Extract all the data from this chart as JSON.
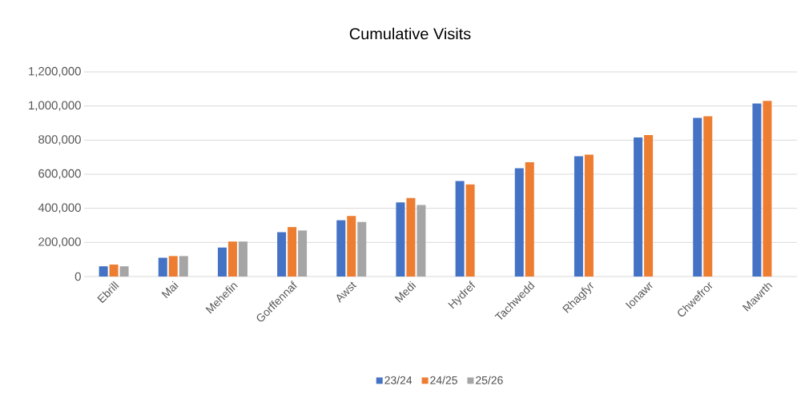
{
  "chart_data": {
    "type": "bar",
    "title": "Cumulative Visits",
    "categories": [
      "Ebrill",
      "Mai",
      "Mehefin",
      "Gorffennaf",
      "Awst",
      "Medi",
      "Hydref",
      "Tachwedd",
      "Rhagfyr",
      "Ionawr",
      "Chwefror",
      "Mawrth"
    ],
    "series": [
      {
        "name": "23/24",
        "color": "#4472c4",
        "values": [
          60000,
          110000,
          170000,
          260000,
          330000,
          435000,
          560000,
          635000,
          705000,
          815000,
          930000,
          1015000
        ]
      },
      {
        "name": "24/25",
        "color": "#ed7d31",
        "values": [
          70000,
          120000,
          205000,
          290000,
          355000,
          460000,
          540000,
          670000,
          715000,
          830000,
          940000,
          1030000
        ]
      },
      {
        "name": "25/26",
        "color": "#a5a5a5",
        "values": [
          60000,
          120000,
          205000,
          270000,
          320000,
          420000,
          null,
          null,
          null,
          null,
          null,
          null
        ]
      }
    ],
    "ylim": [
      0,
      1200000
    ],
    "yticks": [
      0,
      {
        "value": 200000,
        "label": "200,000"
      },
      {
        "value": 400000,
        "label": "400,000"
      },
      {
        "value": 600000,
        "label": "600,000"
      },
      {
        "value": 800000,
        "label": "800,000"
      },
      {
        "value": 1000000,
        "label": "1,000,000"
      },
      {
        "value": 1200000,
        "label": "1,200,000"
      }
    ],
    "grid": "y",
    "legend": "bottom"
  }
}
